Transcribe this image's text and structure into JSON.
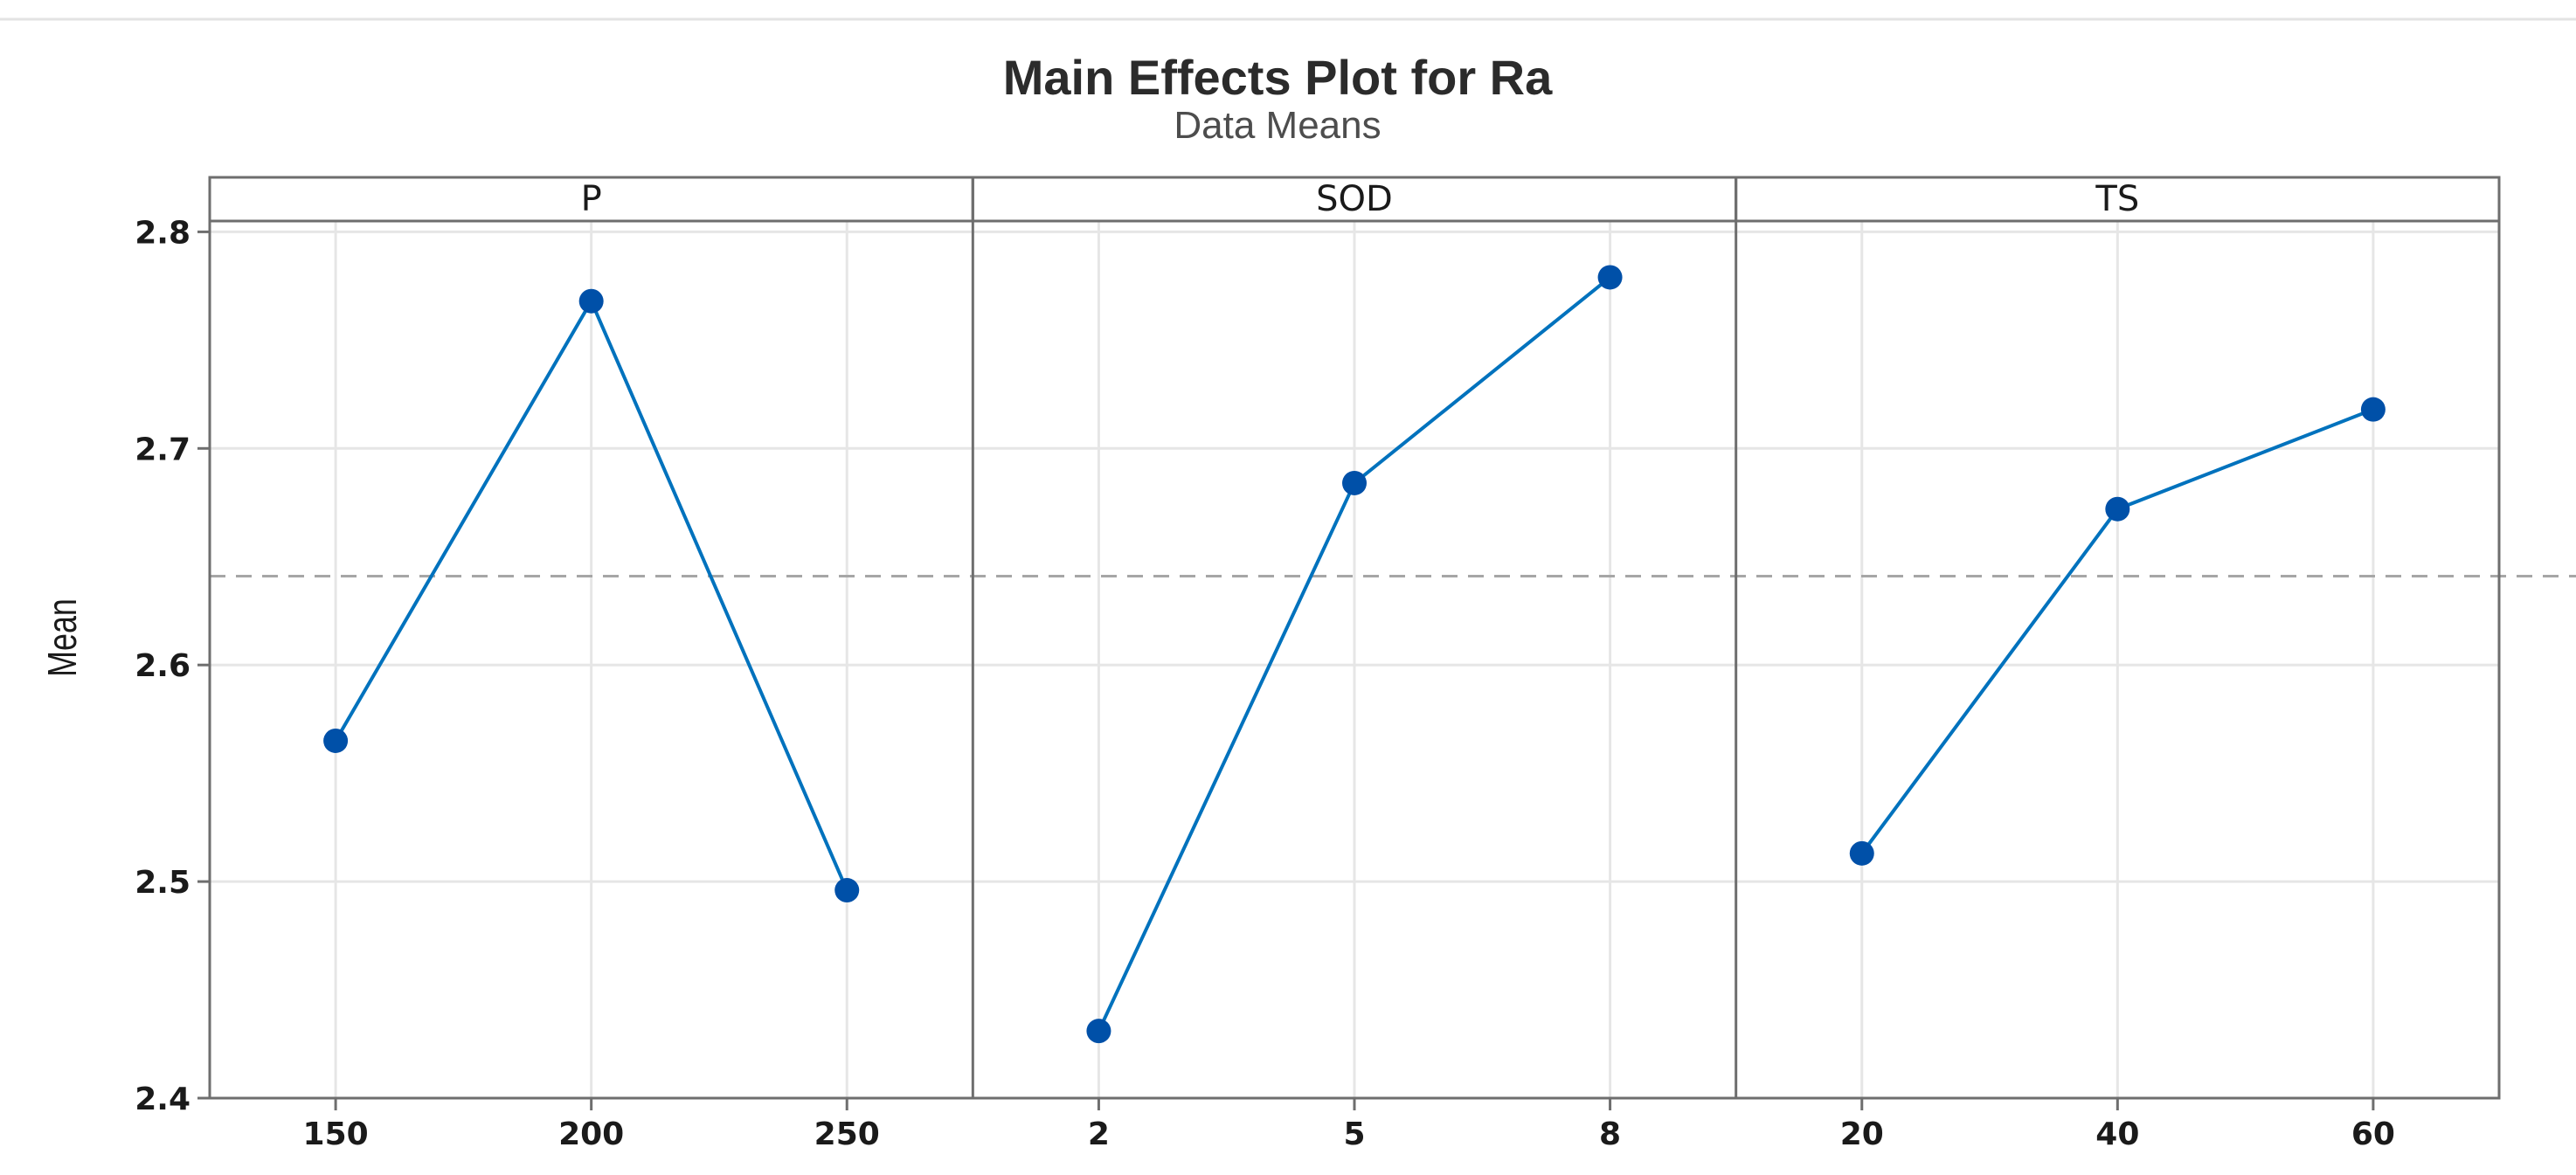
{
  "chart_data": {
    "type": "line",
    "title": "Main Effects Plot for Ra",
    "subtitle": "Data Means",
    "ylabel": "Mean",
    "ylim": [
      2.4,
      2.805
    ],
    "yticks": [
      "2.4",
      "2.5",
      "2.6",
      "2.7",
      "2.8"
    ],
    "reference_line": 2.641,
    "grid": true,
    "colors": {
      "series": "#0072bd",
      "marker": "#0050a8",
      "reference": "#a6a6a6",
      "grid": "#e6e6e6",
      "frame": "#6e6e6e"
    },
    "panels": [
      {
        "factor": "P",
        "x": [
          "150",
          "200",
          "250"
        ],
        "values": [
          2.565,
          2.768,
          2.496
        ]
      },
      {
        "factor": "SOD",
        "x": [
          "2",
          "5",
          "8"
        ],
        "values": [
          2.431,
          2.684,
          2.779
        ]
      },
      {
        "factor": "TS",
        "x": [
          "20",
          "40",
          "60"
        ],
        "values": [
          2.513,
          2.672,
          2.718
        ]
      }
    ]
  }
}
